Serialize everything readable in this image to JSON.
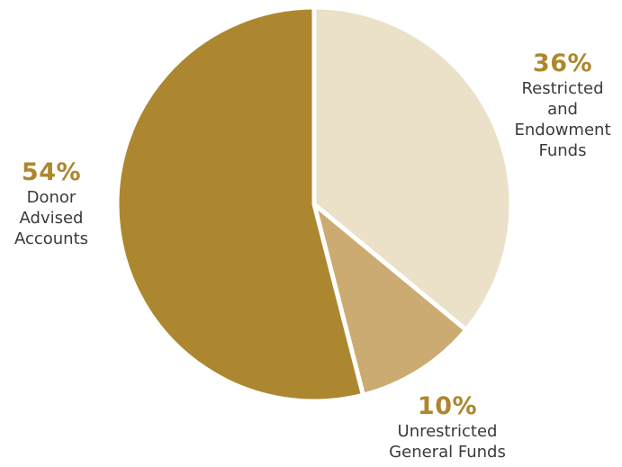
{
  "chart_data": {
    "type": "pie",
    "start_angle_deg": 0,
    "direction": "clockwise",
    "slices": [
      {
        "label_lines": [
          "Restricted",
          "and",
          "Endowment",
          "Funds"
        ],
        "value": 36,
        "value_label": "36%",
        "color": "#ebe0c8"
      },
      {
        "label_lines": [
          "Unrestricted",
          "General Funds"
        ],
        "value": 10,
        "value_label": "10%",
        "color": "#cbab72"
      },
      {
        "label_lines": [
          "Donor",
          "Advised",
          "Accounts"
        ],
        "value": 54,
        "value_label": "54%",
        "color": "#ad872f"
      }
    ],
    "percent_color": "#ad872f",
    "label_color": "#3a3a3a",
    "separator_color": "#ffffff"
  }
}
